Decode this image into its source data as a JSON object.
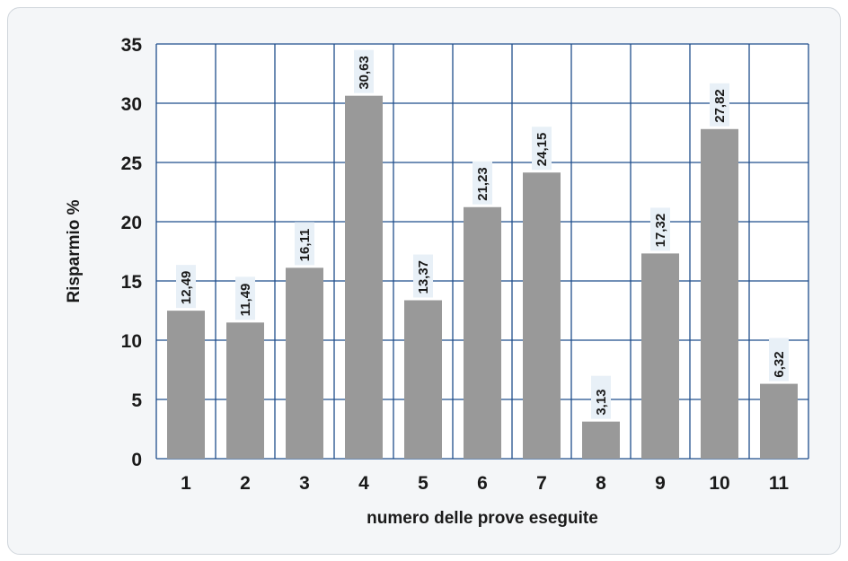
{
  "chart_data": {
    "type": "bar",
    "categories": [
      "1",
      "2",
      "3",
      "4",
      "5",
      "6",
      "7",
      "8",
      "9",
      "10",
      "11"
    ],
    "values": [
      12.49,
      11.49,
      16.11,
      30.63,
      13.37,
      21.23,
      24.15,
      3.13,
      17.32,
      27.82,
      6.32
    ],
    "value_labels": [
      "12,49",
      "11,49",
      "16,11",
      "30,63",
      "13,37",
      "21,23",
      "24,15",
      "3,13",
      "17,32",
      "27,82",
      "6,32"
    ],
    "yticks": [
      "0",
      "5",
      "10",
      "15",
      "20",
      "25",
      "30",
      "35"
    ],
    "ylim": [
      0,
      35
    ],
    "xlabel": "numero delle prove eseguite",
    "ylabel": "Risparmio %",
    "grid": true,
    "colors": {
      "bar": "#999999",
      "grid": "#1f4e8c",
      "plot_bg": "#ffffff",
      "label_bg": "#e8f0f7"
    }
  }
}
